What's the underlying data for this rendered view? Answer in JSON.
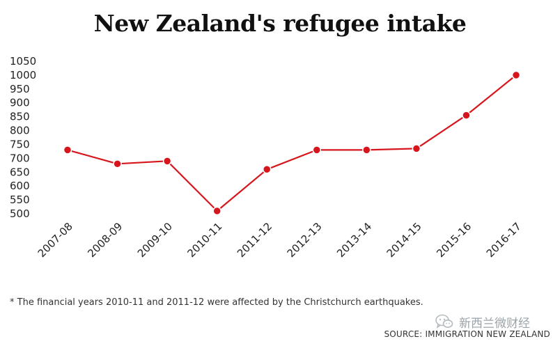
{
  "chart_data": {
    "type": "line",
    "title": "New Zealand's refugee intake",
    "xlabel": "",
    "ylabel": "",
    "categories": [
      "2007-08",
      "2008-09",
      "2009-10",
      "2010-11",
      "2011-12",
      "2012-13",
      "2013-14",
      "2014-15",
      "2015-16",
      "2016-17"
    ],
    "series": [
      {
        "name": "Refugee intake",
        "values": [
          730,
          680,
          690,
          510,
          660,
          730,
          730,
          735,
          855,
          1000
        ],
        "color": "#d7151c"
      }
    ],
    "yticks": [
      500,
      550,
      600,
      650,
      700,
      750,
      800,
      850,
      900,
      950,
      1000,
      1050
    ],
    "ylim": [
      500,
      1050
    ],
    "grid": false,
    "legend": "none"
  },
  "footnote": "* The financial years 2010-11 and 2011-12 were affected by the Christchurch earthquakes.",
  "source": "SOURCE: IMMIGRATION NEW ZEALAND",
  "watermark": {
    "icon": "wechat-icon",
    "text": "新西兰微财经"
  },
  "colors": {
    "line": "#d7151c",
    "text": "#222222",
    "watermark": "#9aa3a8"
  }
}
